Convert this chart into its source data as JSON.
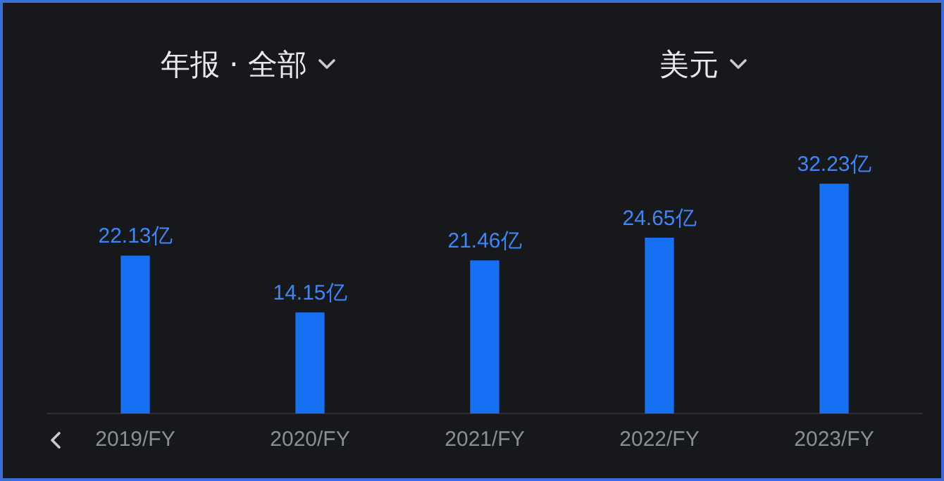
{
  "chart_data": {
    "type": "bar",
    "annotations": [
      "年报 · 全部",
      "美元"
    ],
    "categories": [
      "2019/FY",
      "2020/FY",
      "2021/FY",
      "2022/FY",
      "2023/FY"
    ],
    "values": [
      22.13,
      14.15,
      21.46,
      24.65,
      32.23
    ],
    "value_labels": [
      "22.13亿",
      "14.15亿",
      "21.46亿",
      "24.65亿",
      "32.23亿"
    ],
    "color": "#1570f5",
    "grid": false,
    "legend": false,
    "tick_labels": "x"
  }
}
